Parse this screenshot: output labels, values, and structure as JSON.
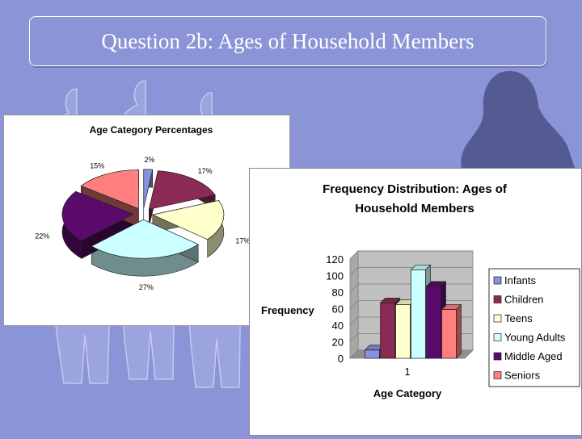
{
  "slide": {
    "title": "Question 2b: Ages of Household Members"
  },
  "colors": {
    "background": "#8a94d6",
    "silhouette_light": "#9ba4df",
    "silhouette_dark": "#545b93",
    "infants": "#8a90e0",
    "children": "#8b2a55",
    "teens": "#ffffcc",
    "young_adults": "#ccffff",
    "middle_aged": "#5a0a6a",
    "seniors": "#ff7f7f"
  },
  "chart_data": [
    {
      "type": "pie",
      "title": "Age Category Percentages",
      "labels": [
        "Infants",
        "Children",
        "Teens",
        "Young Adults",
        "Middle Aged",
        "Seniors"
      ],
      "values": [
        2,
        17,
        17,
        27,
        22,
        15
      ],
      "value_labels": [
        "2%",
        "17%",
        "17%",
        "27%",
        "22%",
        "15%"
      ],
      "style": "3d-exploded"
    },
    {
      "type": "bar",
      "title": "Frequency Distribution: Ages of Household Members",
      "title_lines": [
        "Frequency Distribution: Ages of",
        "Household Members"
      ],
      "xlabel": "Age Category",
      "ylabel": "Frequency",
      "categories": [
        "1"
      ],
      "series": [
        {
          "name": "Infants",
          "values": [
            10
          ]
        },
        {
          "name": "Children",
          "values": [
            67
          ]
        },
        {
          "name": "Teens",
          "values": [
            65
          ]
        },
        {
          "name": "Young Adults",
          "values": [
            107
          ]
        },
        {
          "name": "Middle Aged",
          "values": [
            87
          ]
        },
        {
          "name": "Seniors",
          "values": [
            59
          ]
        }
      ],
      "ylim": [
        0,
        120
      ],
      "yticks": [
        "0",
        "20",
        "40",
        "60",
        "80",
        "100",
        "120"
      ],
      "grid": true,
      "legend": "right"
    }
  ]
}
